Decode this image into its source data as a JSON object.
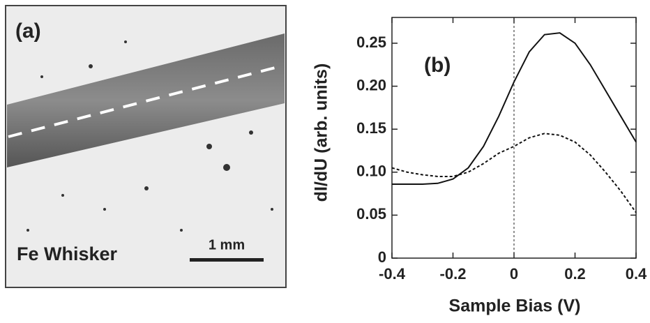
{
  "panel_a": {
    "label": "(a)",
    "caption": "Fe Whisker",
    "scale_bar": "1 mm"
  },
  "chart_data": {
    "type": "line",
    "annotation": "(b)",
    "y_label": "dI/dU (arb. units)",
    "x_label": "Sample Bias (V)",
    "x": [
      -0.4,
      -0.35,
      -0.3,
      -0.25,
      -0.2,
      -0.15,
      -0.1,
      -0.05,
      0,
      0.05,
      0.1,
      0.15,
      0.2,
      0.25,
      0.3,
      0.35,
      0.4
    ],
    "series": [
      {
        "color": "#111111",
        "line_style": "solid",
        "values": [
          0.086,
          0.086,
          0.086,
          0.087,
          0.092,
          0.105,
          0.13,
          0.165,
          0.205,
          0.24,
          0.26,
          0.262,
          0.25,
          0.225,
          0.195,
          0.165,
          0.135
        ]
      },
      {
        "color": "#111111",
        "line_style": "dashed",
        "values": [
          0.105,
          0.1,
          0.097,
          0.095,
          0.095,
          0.1,
          0.11,
          0.122,
          0.13,
          0.14,
          0.145,
          0.143,
          0.135,
          0.12,
          0.1,
          0.078,
          0.053
        ]
      }
    ],
    "reference_x": 0,
    "xlim": [
      -0.4,
      0.4
    ],
    "xticks": [
      -0.4,
      -0.2,
      0,
      0.2,
      0.4
    ],
    "ylim": [
      0,
      0.28
    ],
    "yticks": [
      0,
      0.05,
      {
        "value": 0.1,
        "label": "0.10"
      },
      0.15,
      {
        "value": 0.2,
        "label": "0.20"
      },
      0.25
    ]
  }
}
